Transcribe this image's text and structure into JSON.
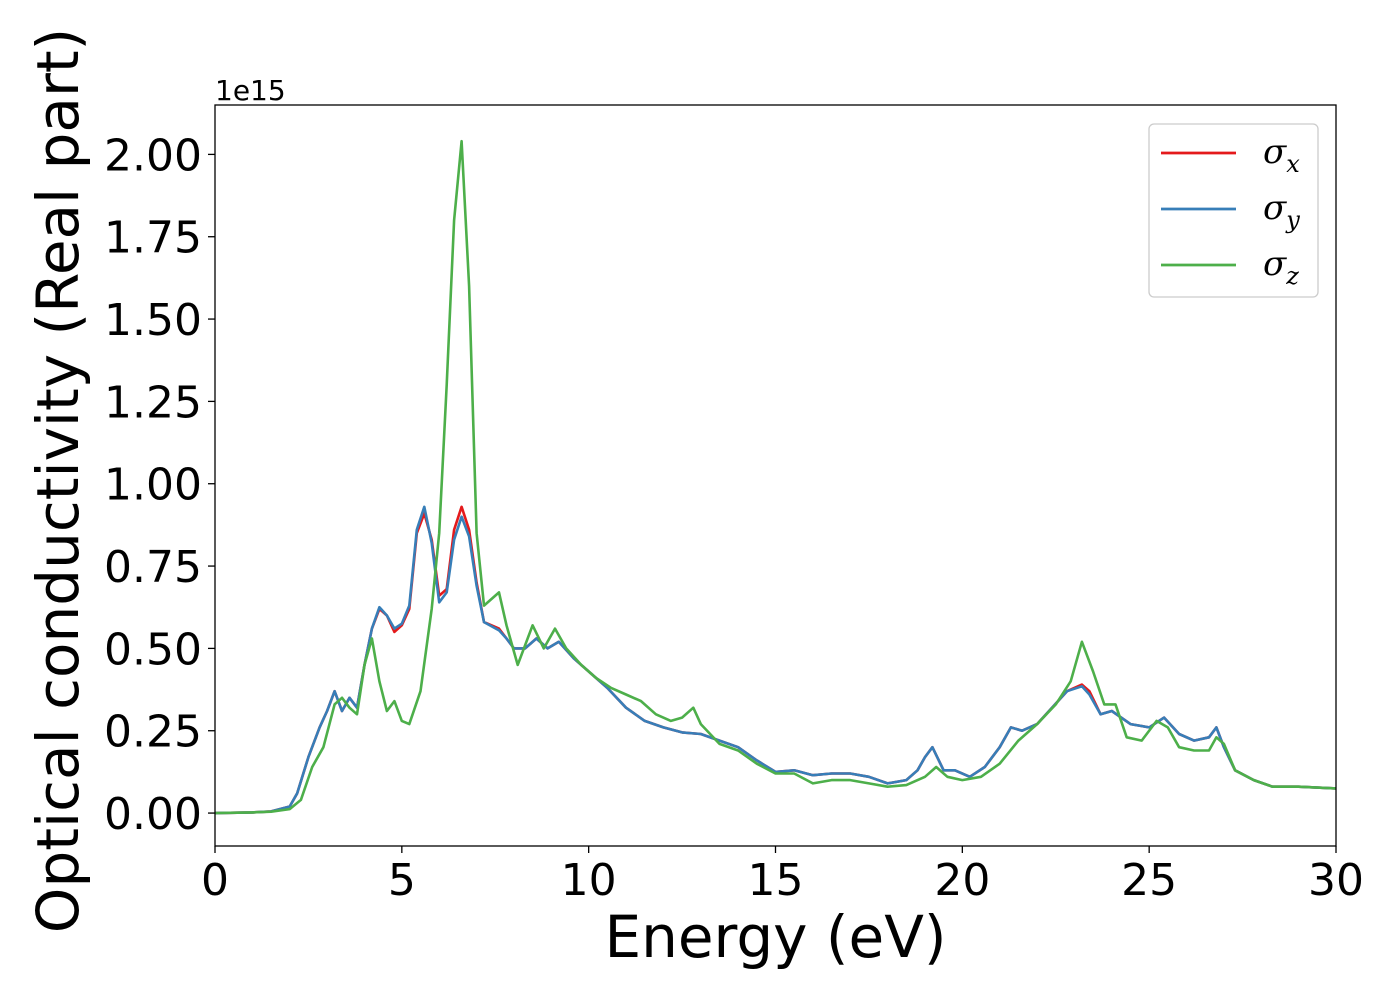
{
  "chart_data": {
    "type": "line",
    "xlabel": "Energy (eV)",
    "ylabel": "Optical conductivity (Real part)",
    "y_offset_text": "1e15",
    "xlim": [
      0,
      30
    ],
    "ylim": [
      -0.1,
      2.15
    ],
    "y_scale_note": "values in units of 1e15",
    "x_ticks": [
      0,
      5,
      10,
      15,
      20,
      25,
      30
    ],
    "x_tick_labels": [
      "0",
      "5",
      "10",
      "15",
      "20",
      "25",
      "30"
    ],
    "y_ticks": [
      0.0,
      0.25,
      0.5,
      0.75,
      1.0,
      1.25,
      1.5,
      1.75,
      2.0
    ],
    "y_tick_labels": [
      "0.00",
      "0.25",
      "0.50",
      "0.75",
      "1.00",
      "1.25",
      "1.50",
      "1.75",
      "2.00"
    ],
    "grid": false,
    "legend_position": "top-right",
    "series": [
      {
        "name": "σx",
        "legend_base": "σ",
        "legend_sub": "x",
        "color": "#e41a1c",
        "points": [
          [
            0,
            0
          ],
          [
            1,
            0.002
          ],
          [
            1.5,
            0.005
          ],
          [
            2,
            0.02
          ],
          [
            2.2,
            0.06
          ],
          [
            2.5,
            0.17
          ],
          [
            2.8,
            0.26
          ],
          [
            3.0,
            0.31
          ],
          [
            3.2,
            0.37
          ],
          [
            3.4,
            0.31
          ],
          [
            3.5,
            0.33
          ],
          [
            3.6,
            0.35
          ],
          [
            3.8,
            0.32
          ],
          [
            4.0,
            0.45
          ],
          [
            4.2,
            0.56
          ],
          [
            4.4,
            0.62
          ],
          [
            4.6,
            0.6
          ],
          [
            4.8,
            0.55
          ],
          [
            5.0,
            0.57
          ],
          [
            5.2,
            0.62
          ],
          [
            5.4,
            0.85
          ],
          [
            5.6,
            0.91
          ],
          [
            5.8,
            0.83
          ],
          [
            6.0,
            0.66
          ],
          [
            6.2,
            0.68
          ],
          [
            6.4,
            0.86
          ],
          [
            6.6,
            0.93
          ],
          [
            6.8,
            0.86
          ],
          [
            7.0,
            0.7
          ],
          [
            7.2,
            0.58
          ],
          [
            7.6,
            0.56
          ],
          [
            7.8,
            0.53
          ],
          [
            8.0,
            0.5
          ],
          [
            8.3,
            0.5
          ],
          [
            8.6,
            0.53
          ],
          [
            8.9,
            0.5
          ],
          [
            9.2,
            0.52
          ],
          [
            9.6,
            0.47
          ],
          [
            10.0,
            0.43
          ],
          [
            10.5,
            0.38
          ],
          [
            11.0,
            0.32
          ],
          [
            11.5,
            0.28
          ],
          [
            12.0,
            0.26
          ],
          [
            12.5,
            0.245
          ],
          [
            13.0,
            0.24
          ],
          [
            13.5,
            0.22
          ],
          [
            14.0,
            0.2
          ],
          [
            14.5,
            0.16
          ],
          [
            15.0,
            0.125
          ],
          [
            15.5,
            0.13
          ],
          [
            16.0,
            0.115
          ],
          [
            16.5,
            0.12
          ],
          [
            17.0,
            0.12
          ],
          [
            17.5,
            0.11
          ],
          [
            18.0,
            0.09
          ],
          [
            18.5,
            0.1
          ],
          [
            18.8,
            0.13
          ],
          [
            19.0,
            0.17
          ],
          [
            19.2,
            0.2
          ],
          [
            19.5,
            0.13
          ],
          [
            19.8,
            0.13
          ],
          [
            20.2,
            0.11
          ],
          [
            20.6,
            0.14
          ],
          [
            21.0,
            0.2
          ],
          [
            21.3,
            0.26
          ],
          [
            21.6,
            0.25
          ],
          [
            22.0,
            0.27
          ],
          [
            22.4,
            0.32
          ],
          [
            22.8,
            0.37
          ],
          [
            23.2,
            0.39
          ],
          [
            23.4,
            0.37
          ],
          [
            23.7,
            0.3
          ],
          [
            24.0,
            0.31
          ],
          [
            24.5,
            0.27
          ],
          [
            25.0,
            0.26
          ],
          [
            25.4,
            0.29
          ],
          [
            25.8,
            0.24
          ],
          [
            26.2,
            0.22
          ],
          [
            26.6,
            0.23
          ],
          [
            26.8,
            0.26
          ],
          [
            27.0,
            0.2
          ],
          [
            27.3,
            0.13
          ],
          [
            27.8,
            0.1
          ],
          [
            28.3,
            0.08
          ],
          [
            29.0,
            0.08
          ],
          [
            30.0,
            0.075
          ]
        ]
      },
      {
        "name": "σy",
        "legend_base": "σ",
        "legend_sub": "y",
        "color": "#377eb8",
        "points": [
          [
            0,
            0
          ],
          [
            1,
            0.002
          ],
          [
            1.5,
            0.005
          ],
          [
            2,
            0.02
          ],
          [
            2.2,
            0.06
          ],
          [
            2.5,
            0.17
          ],
          [
            2.8,
            0.26
          ],
          [
            3.0,
            0.31
          ],
          [
            3.2,
            0.37
          ],
          [
            3.4,
            0.31
          ],
          [
            3.5,
            0.33
          ],
          [
            3.6,
            0.35
          ],
          [
            3.8,
            0.32
          ],
          [
            4.0,
            0.45
          ],
          [
            4.2,
            0.56
          ],
          [
            4.4,
            0.625
          ],
          [
            4.6,
            0.6
          ],
          [
            4.8,
            0.56
          ],
          [
            5.0,
            0.575
          ],
          [
            5.2,
            0.63
          ],
          [
            5.4,
            0.86
          ],
          [
            5.6,
            0.93
          ],
          [
            5.8,
            0.82
          ],
          [
            6.0,
            0.64
          ],
          [
            6.2,
            0.67
          ],
          [
            6.4,
            0.83
          ],
          [
            6.6,
            0.9
          ],
          [
            6.8,
            0.84
          ],
          [
            7.0,
            0.69
          ],
          [
            7.2,
            0.58
          ],
          [
            7.6,
            0.555
          ],
          [
            7.8,
            0.53
          ],
          [
            8.0,
            0.5
          ],
          [
            8.3,
            0.5
          ],
          [
            8.6,
            0.53
          ],
          [
            8.9,
            0.5
          ],
          [
            9.2,
            0.52
          ],
          [
            9.6,
            0.47
          ],
          [
            10.0,
            0.43
          ],
          [
            10.5,
            0.38
          ],
          [
            11.0,
            0.32
          ],
          [
            11.5,
            0.28
          ],
          [
            12.0,
            0.26
          ],
          [
            12.5,
            0.245
          ],
          [
            13.0,
            0.24
          ],
          [
            13.5,
            0.22
          ],
          [
            14.0,
            0.2
          ],
          [
            14.5,
            0.16
          ],
          [
            15.0,
            0.125
          ],
          [
            15.5,
            0.13
          ],
          [
            16.0,
            0.115
          ],
          [
            16.5,
            0.12
          ],
          [
            17.0,
            0.12
          ],
          [
            17.5,
            0.11
          ],
          [
            18.0,
            0.09
          ],
          [
            18.5,
            0.1
          ],
          [
            18.8,
            0.13
          ],
          [
            19.0,
            0.17
          ],
          [
            19.2,
            0.2
          ],
          [
            19.5,
            0.13
          ],
          [
            19.8,
            0.13
          ],
          [
            20.2,
            0.11
          ],
          [
            20.6,
            0.14
          ],
          [
            21.0,
            0.2
          ],
          [
            21.3,
            0.26
          ],
          [
            21.6,
            0.25
          ],
          [
            22.0,
            0.27
          ],
          [
            22.4,
            0.32
          ],
          [
            22.8,
            0.37
          ],
          [
            23.2,
            0.385
          ],
          [
            23.4,
            0.36
          ],
          [
            23.7,
            0.3
          ],
          [
            24.0,
            0.31
          ],
          [
            24.5,
            0.27
          ],
          [
            25.0,
            0.26
          ],
          [
            25.4,
            0.29
          ],
          [
            25.8,
            0.24
          ],
          [
            26.2,
            0.22
          ],
          [
            26.6,
            0.23
          ],
          [
            26.8,
            0.26
          ],
          [
            27.0,
            0.2
          ],
          [
            27.3,
            0.13
          ],
          [
            27.8,
            0.1
          ],
          [
            28.3,
            0.08
          ],
          [
            29.0,
            0.08
          ],
          [
            30.0,
            0.075
          ]
        ]
      },
      {
        "name": "σz",
        "legend_base": "σ",
        "legend_sub": "z",
        "color": "#4daf4a",
        "points": [
          [
            0,
            0
          ],
          [
            1,
            0.002
          ],
          [
            1.5,
            0.004
          ],
          [
            2,
            0.012
          ],
          [
            2.3,
            0.04
          ],
          [
            2.6,
            0.14
          ],
          [
            2.9,
            0.2
          ],
          [
            3.2,
            0.33
          ],
          [
            3.4,
            0.35
          ],
          [
            3.6,
            0.32
          ],
          [
            3.8,
            0.3
          ],
          [
            4.0,
            0.45
          ],
          [
            4.2,
            0.53
          ],
          [
            4.4,
            0.4
          ],
          [
            4.6,
            0.31
          ],
          [
            4.8,
            0.34
          ],
          [
            5.0,
            0.28
          ],
          [
            5.2,
            0.27
          ],
          [
            5.5,
            0.37
          ],
          [
            5.8,
            0.62
          ],
          [
            6.0,
            0.85
          ],
          [
            6.2,
            1.3
          ],
          [
            6.4,
            1.8
          ],
          [
            6.6,
            2.04
          ],
          [
            6.8,
            1.6
          ],
          [
            7.0,
            0.85
          ],
          [
            7.2,
            0.63
          ],
          [
            7.4,
            0.65
          ],
          [
            7.6,
            0.67
          ],
          [
            7.8,
            0.57
          ],
          [
            8.1,
            0.45
          ],
          [
            8.5,
            0.57
          ],
          [
            8.8,
            0.5
          ],
          [
            9.1,
            0.56
          ],
          [
            9.4,
            0.5
          ],
          [
            9.8,
            0.45
          ],
          [
            10.2,
            0.41
          ],
          [
            10.6,
            0.38
          ],
          [
            11.0,
            0.36
          ],
          [
            11.4,
            0.34
          ],
          [
            11.8,
            0.3
          ],
          [
            12.2,
            0.28
          ],
          [
            12.5,
            0.29
          ],
          [
            12.8,
            0.32
          ],
          [
            13.0,
            0.27
          ],
          [
            13.5,
            0.21
          ],
          [
            14.0,
            0.19
          ],
          [
            14.5,
            0.15
          ],
          [
            15.0,
            0.12
          ],
          [
            15.5,
            0.12
          ],
          [
            16.0,
            0.09
          ],
          [
            16.5,
            0.1
          ],
          [
            17.0,
            0.1
          ],
          [
            17.5,
            0.09
          ],
          [
            18.0,
            0.08
          ],
          [
            18.5,
            0.085
          ],
          [
            19.0,
            0.11
          ],
          [
            19.3,
            0.14
          ],
          [
            19.6,
            0.11
          ],
          [
            20.0,
            0.1
          ],
          [
            20.5,
            0.11
          ],
          [
            21.0,
            0.15
          ],
          [
            21.5,
            0.22
          ],
          [
            22.0,
            0.27
          ],
          [
            22.5,
            0.33
          ],
          [
            22.9,
            0.4
          ],
          [
            23.2,
            0.52
          ],
          [
            23.5,
            0.43
          ],
          [
            23.8,
            0.33
          ],
          [
            24.1,
            0.33
          ],
          [
            24.4,
            0.23
          ],
          [
            24.8,
            0.22
          ],
          [
            25.2,
            0.28
          ],
          [
            25.5,
            0.26
          ],
          [
            25.8,
            0.2
          ],
          [
            26.2,
            0.19
          ],
          [
            26.6,
            0.19
          ],
          [
            26.8,
            0.23
          ],
          [
            27.0,
            0.21
          ],
          [
            27.3,
            0.13
          ],
          [
            27.8,
            0.1
          ],
          [
            28.3,
            0.08
          ],
          [
            29.0,
            0.08
          ],
          [
            30.0,
            0.075
          ]
        ]
      }
    ]
  }
}
